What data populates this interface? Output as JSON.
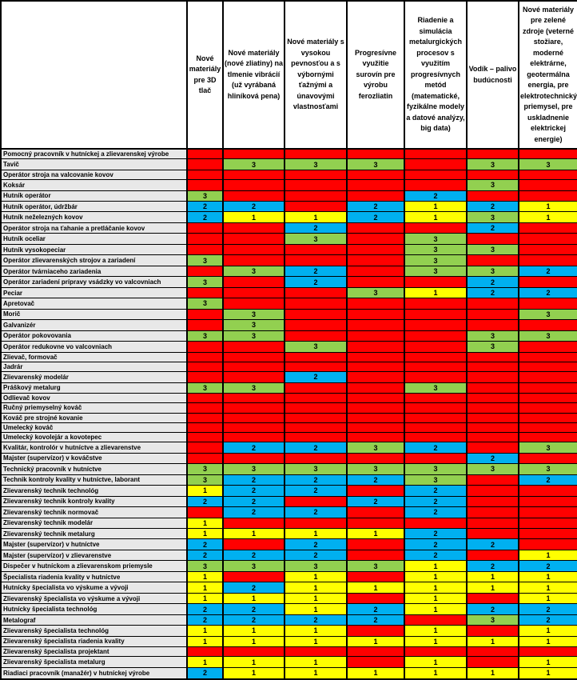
{
  "colors": {
    "r": "#FF0000",
    "g": "#92D050",
    "b": "#00B0F0",
    "y": "#FFFF00",
    "label_bg": "#E8E8E8",
    "header_bg": "#FFFFFF",
    "border": "#000000"
  },
  "legend": {
    "value_by_color": {
      "g": "3",
      "b": "2",
      "y": "1",
      "r": ""
    }
  },
  "table": {
    "corner_label": "",
    "columns": [
      "Nové materiály pre 3D tlač",
      "Nové materiály (nové zliatiny) na tlmenie vibrácií (už vyrábaná hliníková pena)",
      "Nové materiály s vysokou pevnosťou a s výbornými ťažnými a únavovými vlastnosťami",
      "Progresívne využitie surovín pre výrobu ferozliatin",
      "Riadenie a simulácia metalurgických procesov s využitím progresívnych metód (matematické, fyzikálne modely a datové analýzy, big data)",
      "Vodík – palivo budúcnosti",
      "Nové materiály pre zelené zdroje (veterné stožiare, moderné elektrárne, geotermálna energia, pre elektrotechnický priemysel, pre uskladnenie elektrickej energie)"
    ],
    "rows": [
      {
        "label": "Pomocný pracovník v hutníckej a zlievarenskej výrobe",
        "cells": [
          "r",
          "r",
          "r",
          "r",
          "r",
          "r",
          "r"
        ]
      },
      {
        "label": "Tavič",
        "cells": [
          "r",
          "g",
          "g",
          "g",
          "r",
          "g",
          "g"
        ]
      },
      {
        "label": "Operátor stroja na valcovanie kovov",
        "cells": [
          "r",
          "r",
          "r",
          "r",
          "r",
          "r",
          "r"
        ]
      },
      {
        "label": "Koksár",
        "cells": [
          "r",
          "r",
          "r",
          "r",
          "r",
          "g",
          "r"
        ]
      },
      {
        "label": "Hutník operátor",
        "cells": [
          "g",
          "r",
          "r",
          "r",
          "b",
          "r",
          "r"
        ]
      },
      {
        "label": "Hutník operátor, údržbár",
        "cells": [
          "b",
          "b",
          "r",
          "b",
          "y",
          "b",
          "y"
        ]
      },
      {
        "label": "Hutník neželezných kovov",
        "cells": [
          "b",
          "y",
          "y",
          "b",
          "y",
          "g",
          "y"
        ]
      },
      {
        "label": "Operátor stroja na ťahanie a pretláčanie kovov",
        "cells": [
          "r",
          "r",
          "b",
          "r",
          "r",
          "b",
          "r"
        ]
      },
      {
        "label": "Hutník oceliar",
        "cells": [
          "r",
          "r",
          "g",
          "r",
          "g",
          "r",
          "r"
        ]
      },
      {
        "label": "Hutník vysokopeciar",
        "cells": [
          "r",
          "r",
          "r",
          "r",
          "g",
          "g",
          "r"
        ]
      },
      {
        "label": "Operátor zlievarenských strojov a zariadení",
        "cells": [
          "g",
          "r",
          "r",
          "r",
          "g",
          "r",
          "r"
        ]
      },
      {
        "label": "Operátor tvárniaceho zariadenia",
        "cells": [
          "r",
          "g",
          "b",
          "r",
          "g",
          "g",
          "b"
        ]
      },
      {
        "label": "Operátor zariadení prípravy vsádzky vo valcovniach",
        "cells": [
          "g",
          "r",
          "b",
          "r",
          "r",
          "b",
          "r"
        ]
      },
      {
        "label": "Peciar",
        "cells": [
          "r",
          "r",
          "r",
          "g",
          "y",
          "b",
          "b"
        ]
      },
      {
        "label": "Apretovač",
        "cells": [
          "g",
          "r",
          "r",
          "r",
          "r",
          "r",
          "r"
        ]
      },
      {
        "label": "Morič",
        "cells": [
          "r",
          "g",
          "r",
          "r",
          "r",
          "r",
          "g"
        ]
      },
      {
        "label": "Galvanizér",
        "cells": [
          "r",
          "g",
          "r",
          "r",
          "r",
          "r",
          "r"
        ]
      },
      {
        "label": "Operátor pokovovania",
        "cells": [
          "g",
          "g",
          "r",
          "r",
          "r",
          "g",
          "g"
        ]
      },
      {
        "label": "Operátor redukovne vo valcovniach",
        "cells": [
          "r",
          "r",
          "g",
          "r",
          "r",
          "g",
          "r"
        ]
      },
      {
        "label": "Zlievač, formovač",
        "cells": [
          "r",
          "r",
          "r",
          "r",
          "r",
          "r",
          "r"
        ]
      },
      {
        "label": "Jadrár",
        "cells": [
          "r",
          "r",
          "r",
          "r",
          "r",
          "r",
          "r"
        ]
      },
      {
        "label": "Zlievarenský modelár",
        "cells": [
          "r",
          "r",
          "b",
          "r",
          "r",
          "r",
          "r"
        ]
      },
      {
        "label": "Práškový metalurg",
        "cells": [
          "g",
          "g",
          "r",
          "r",
          "g",
          "r",
          "r"
        ]
      },
      {
        "label": "Odlievač kovov",
        "cells": [
          "r",
          "r",
          "r",
          "r",
          "r",
          "r",
          "r"
        ]
      },
      {
        "label": "Ručný priemyselný kováč",
        "cells": [
          "r",
          "r",
          "r",
          "r",
          "r",
          "r",
          "r"
        ]
      },
      {
        "label": "Kováč pre strojné kovanie",
        "cells": [
          "r",
          "r",
          "r",
          "r",
          "r",
          "r",
          "r"
        ]
      },
      {
        "label": "Umelecký kováč",
        "cells": [
          "r",
          "r",
          "r",
          "r",
          "r",
          "r",
          "r"
        ]
      },
      {
        "label": "Umelecký kovolejár a kovotepec",
        "cells": [
          "r",
          "r",
          "r",
          "r",
          "r",
          "r",
          "r"
        ]
      },
      {
        "label": "Kvalitár, kontrolór v hutníctve a zlievarenstve",
        "cells": [
          "r",
          "b",
          "b",
          "g",
          "b",
          "r",
          "g"
        ]
      },
      {
        "label": "Majster (supervízor) v kováčstve",
        "cells": [
          "r",
          "r",
          "r",
          "r",
          "r",
          "b",
          "r"
        ]
      },
      {
        "label": "Technický pracovník v hutníctve",
        "cells": [
          "g",
          "g",
          "g",
          "g",
          "g",
          "g",
          "g"
        ]
      },
      {
        "label": "Technik kontroly kvality v hutníctve, laborant",
        "cells": [
          "g",
          "b",
          "b",
          "b",
          "g",
          "r",
          "b"
        ]
      },
      {
        "label": "Zlievarenský technik technológ",
        "cells": [
          "y",
          "b",
          "b",
          "r",
          "b",
          "r",
          "r"
        ]
      },
      {
        "label": "Zlievarenský technik kontroly kvality",
        "cells": [
          "b",
          "b",
          "r",
          "b",
          "b",
          "r",
          "r"
        ]
      },
      {
        "label": "Zlievarenský technik normovač",
        "cells": [
          "r",
          "b",
          "b",
          "r",
          "b",
          "r",
          "r"
        ]
      },
      {
        "label": "Zlievarenský technik modelár",
        "cells": [
          "y",
          "r",
          "r",
          "r",
          "r",
          "r",
          "r"
        ]
      },
      {
        "label": "Zlievarenský technik metalurg",
        "cells": [
          "y",
          "y",
          "y",
          "y",
          "b",
          "r",
          "r"
        ]
      },
      {
        "label": "Majster (supervízor) v hutníctve",
        "cells": [
          "b",
          "r",
          "b",
          "r",
          "b",
          "b",
          "r"
        ]
      },
      {
        "label": "Majster (supervízor) v zlievarenstve",
        "cells": [
          "b",
          "b",
          "b",
          "r",
          "b",
          "r",
          "y"
        ]
      },
      {
        "label": "Dispečer v hutníckom a zlievarenskom priemysle",
        "cells": [
          "g",
          "g",
          "g",
          "g",
          "y",
          "b",
          "b"
        ]
      },
      {
        "label": "Špecialista riadenia kvality v hutníctve",
        "cells": [
          "y",
          "r",
          "y",
          "r",
          "y",
          "y",
          "y"
        ]
      },
      {
        "label": "Hutnícky špecialista vo výskume a vývoji",
        "cells": [
          "y",
          "b",
          "y",
          "y",
          "y",
          "y",
          "y"
        ]
      },
      {
        "label": "Zlievarenský špecialista vo výskume a vývoji",
        "cells": [
          "y",
          "y",
          "y",
          "r",
          "y",
          "r",
          "y"
        ]
      },
      {
        "label": "Hutnícky špecialista technológ",
        "cells": [
          "b",
          "b",
          "y",
          "b",
          "y",
          "b",
          "b"
        ]
      },
      {
        "label": "Metalograf",
        "cells": [
          "b",
          "b",
          "b",
          "b",
          "r",
          "g",
          "b"
        ]
      },
      {
        "label": "Zlievarenský špecialista technológ",
        "cells": [
          "y",
          "y",
          "y",
          "r",
          "y",
          "r",
          "y"
        ]
      },
      {
        "label": "Zlievarenský špecialista riadenia kvality",
        "cells": [
          "y",
          "y",
          "y",
          "y",
          "y",
          "y",
          "y"
        ]
      },
      {
        "label": "Zlievarenský špecialista projektant",
        "cells": [
          "r",
          "r",
          "r",
          "r",
          "r",
          "r",
          "r"
        ]
      },
      {
        "label": "Zlievarenský špecialista metalurg",
        "cells": [
          "y",
          "y",
          "y",
          "r",
          "y",
          "r",
          "y"
        ]
      },
      {
        "label": "Riadiaci pracovník (manažér) v hutníckej výrobe",
        "cells": [
          "b",
          "y",
          "y",
          "y",
          "y",
          "y",
          "y"
        ]
      }
    ]
  }
}
